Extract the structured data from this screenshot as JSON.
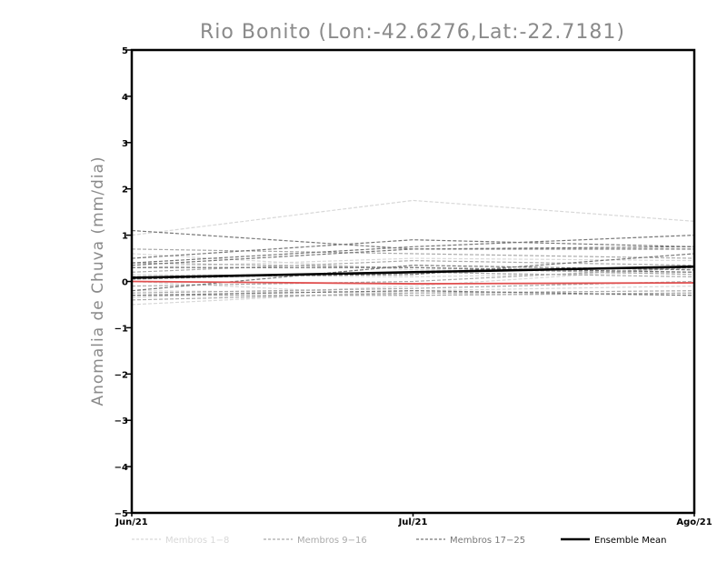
{
  "chart_data": {
    "type": "line",
    "title": "Rio Bonito (Lon:-42.6276,Lat:-22.7181)",
    "ylabel": "Anomalia de Chuva (mm/dia)",
    "xlabel": "",
    "categories": [
      "Jun/21",
      "Jul/21",
      "Ago/21"
    ],
    "ylim": [
      -5,
      5
    ],
    "yticks": [
      -5,
      -4,
      -3,
      -2,
      -1,
      0,
      1,
      2,
      3,
      4,
      5
    ],
    "grid": false,
    "legend_position": "bottom",
    "legend": [
      {
        "label": "Membros 1-8",
        "color": "#d8d8d8",
        "style": "dashed"
      },
      {
        "label": "Membros 9-16",
        "color": "#aaaaaa",
        "style": "dashed"
      },
      {
        "label": "Membros 17-25",
        "color": "#777777",
        "style": "dashed"
      },
      {
        "label": "Ensemble Mean",
        "color": "#000000",
        "style": "solid"
      }
    ],
    "member_groups": [
      {
        "color": "#d8d8d8",
        "series": [
          [
            1.0,
            1.75,
            1.3
          ],
          [
            0.6,
            0.25,
            0.2
          ],
          [
            -0.5,
            -0.2,
            -0.1
          ],
          [
            0.0,
            -0.3,
            -0.25
          ],
          [
            0.3,
            0.5,
            0.45
          ],
          [
            -0.35,
            -0.1,
            0.3
          ],
          [
            0.15,
            0.1,
            0.2
          ],
          [
            -0.2,
            -0.25,
            -0.3
          ]
        ]
      },
      {
        "color": "#aaaaaa",
        "series": [
          [
            0.7,
            0.6,
            0.5
          ],
          [
            -0.4,
            -0.25,
            -0.2
          ],
          [
            0.1,
            0.2,
            0.1
          ],
          [
            -0.1,
            0.0,
            0.3
          ],
          [
            0.4,
            0.3,
            0.15
          ],
          [
            -0.3,
            -0.3,
            -0.25
          ],
          [
            0.2,
            0.45,
            0.35
          ],
          [
            -0.25,
            -0.15,
            0.0
          ]
        ]
      },
      {
        "color": "#777777",
        "series": [
          [
            1.1,
            0.7,
            0.7
          ],
          [
            0.5,
            0.9,
            0.75
          ],
          [
            0.4,
            0.75,
            1.0
          ],
          [
            0.35,
            0.7,
            0.75
          ],
          [
            0.3,
            0.3,
            0.2
          ],
          [
            -0.2,
            0.35,
            0.25
          ],
          [
            0.1,
            0.15,
            0.6
          ],
          [
            -0.3,
            -0.2,
            -0.3
          ],
          [
            0.05,
            0.2,
            0.3
          ]
        ]
      }
    ],
    "ensemble_mean": {
      "name": "Ensemble Mean",
      "color": "#000000",
      "values": [
        0.08,
        0.2,
        0.32
      ]
    },
    "reference": {
      "color": "#e05050",
      "values": [
        0.0,
        -0.05,
        -0.03
      ]
    }
  }
}
